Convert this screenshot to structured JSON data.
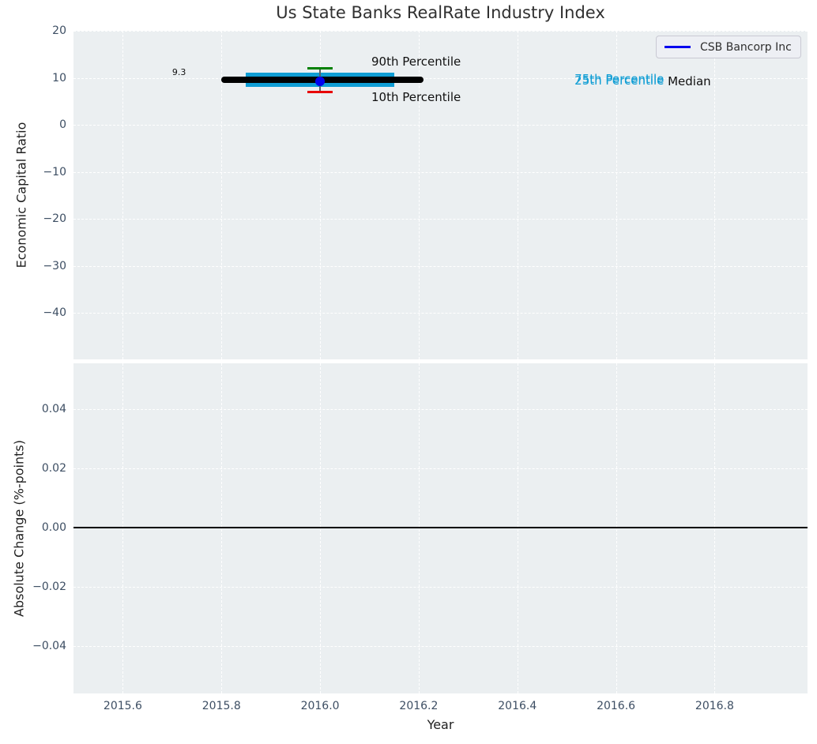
{
  "chart_data": [
    {
      "type": "box-line",
      "title": "Us State Banks RealRate Industry Index",
      "ylabel": "Economic Capital Ratio",
      "xlim": [
        2015.5,
        2016.99
      ],
      "ylim": [
        -49.9,
        20
      ],
      "xticks": [
        2015.6,
        2015.8,
        2016.0,
        2016.2,
        2016.4,
        2016.6,
        2016.8
      ],
      "xtick_labels": [
        "2015.6",
        "2015.8",
        "2016.0",
        "2016.2",
        "2016.4",
        "2016.6",
        "2016.8"
      ],
      "yticks": [
        20,
        10,
        0,
        -10,
        -20,
        -30,
        -40
      ],
      "ytick_labels": [
        "20",
        "10",
        "0",
        "−10",
        "−20",
        "−30",
        "−40"
      ],
      "grid": "white dashed, on",
      "background": "#ebeff1",
      "legend": {
        "label": "CSB Bancorp Inc",
        "color": "#0000ee",
        "location": "upper right"
      },
      "series": [
        {
          "name": "CSB Bancorp Inc",
          "type": "point",
          "x": 2016.0,
          "y": 9.3,
          "color": "#0000ee"
        },
        {
          "name": "Median",
          "type": "thick-line",
          "x_span": [
            2015.8,
            2016.21
          ],
          "y": 9.5,
          "color": "#000000"
        },
        {
          "name": "25th-75th Percentile band",
          "type": "band",
          "x_span": [
            2015.85,
            2016.15
          ],
          "y_low": 8.1,
          "y_high": 11.1,
          "color": "#0f9dd4"
        },
        {
          "name": "90th Percentile",
          "type": "errorbar-cap",
          "x": 2016.0,
          "y": 12.0,
          "cap_halfwidth": 0.025,
          "color": "#008000"
        },
        {
          "name": "10th Percentile",
          "type": "errorbar-cap",
          "x": 2016.0,
          "y": 6.9,
          "cap_halfwidth": 0.025,
          "color": "#e80000"
        }
      ],
      "whisker_color": "#55606a",
      "annotations": [
        {
          "text": "9.3",
          "x": 2015.7,
          "y": 11.2,
          "color": "#111111",
          "size": 11
        },
        {
          "text": "90th Percentile",
          "x": 2016.104,
          "y": 13.5,
          "color": "#101010",
          "size": 15
        },
        {
          "text": "10th Percentile",
          "x": 2016.104,
          "y": 5.8,
          "color": "#101010",
          "size": 15
        },
        {
          "text": "75th Percentile",
          "x": 2016.516,
          "y": 9.75,
          "color": "#0f9dd4",
          "size": 15
        },
        {
          "text": "25th Percentile",
          "x": 2016.516,
          "y": 9.4,
          "color": "#0f9dd4",
          "size": 15
        },
        {
          "text": "Median",
          "x": 2016.705,
          "y": 9.25,
          "color": "#101010",
          "size": 15
        }
      ]
    },
    {
      "type": "line",
      "xlabel": "Year",
      "ylabel": "Absolute Change (%-points)",
      "xlim": [
        2015.5,
        2016.99
      ],
      "ylim": [
        -0.0556,
        0.0557
      ],
      "yticks": [
        0.04,
        0.02,
        0.0,
        -0.02,
        -0.04
      ],
      "ytick_labels": [
        "0.04",
        "0.02",
        "0.00",
        "−0.02",
        "−0.04"
      ],
      "grid": "white dashed, on",
      "background": "#ebeff1",
      "series": [
        {
          "name": "zero-change-line",
          "type": "hline",
          "y": 0.0,
          "color": "#000000"
        }
      ]
    }
  ]
}
